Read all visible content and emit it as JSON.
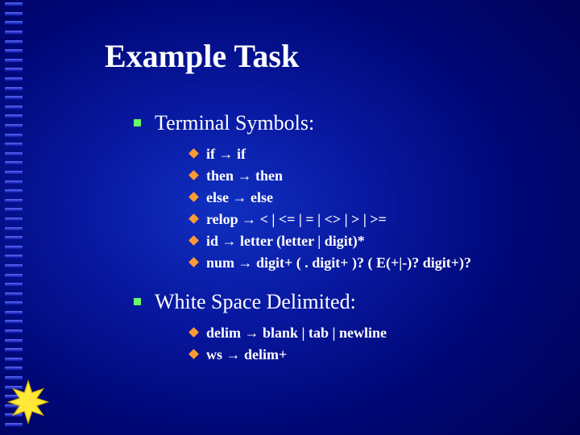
{
  "title": "Example Task",
  "colors": {
    "bullet_level1": "#66ff66",
    "bullet_level2": "#ff9933",
    "text": "#ffffff",
    "star_fill": "#ffe838",
    "star_stroke": "#d0b000"
  },
  "typography": {
    "title_fontsize": 40,
    "level1_fontsize": 26,
    "level2_fontsize": 18,
    "font_family": "Times New Roman"
  },
  "sections": [
    {
      "heading": "Terminal Symbols:",
      "items": [
        "if → if",
        "then → then",
        "else → else",
        "relop → < | <= | = | <> | > | >=",
        "id → letter (letter | digit)*",
        "num → digit+ ( . digit+ )? ( E(+|-)? digit+)?"
      ]
    },
    {
      "heading": "White Space Delimited:",
      "items": [
        "delim → blank | tab | newline",
        "ws → delim+"
      ]
    }
  ]
}
